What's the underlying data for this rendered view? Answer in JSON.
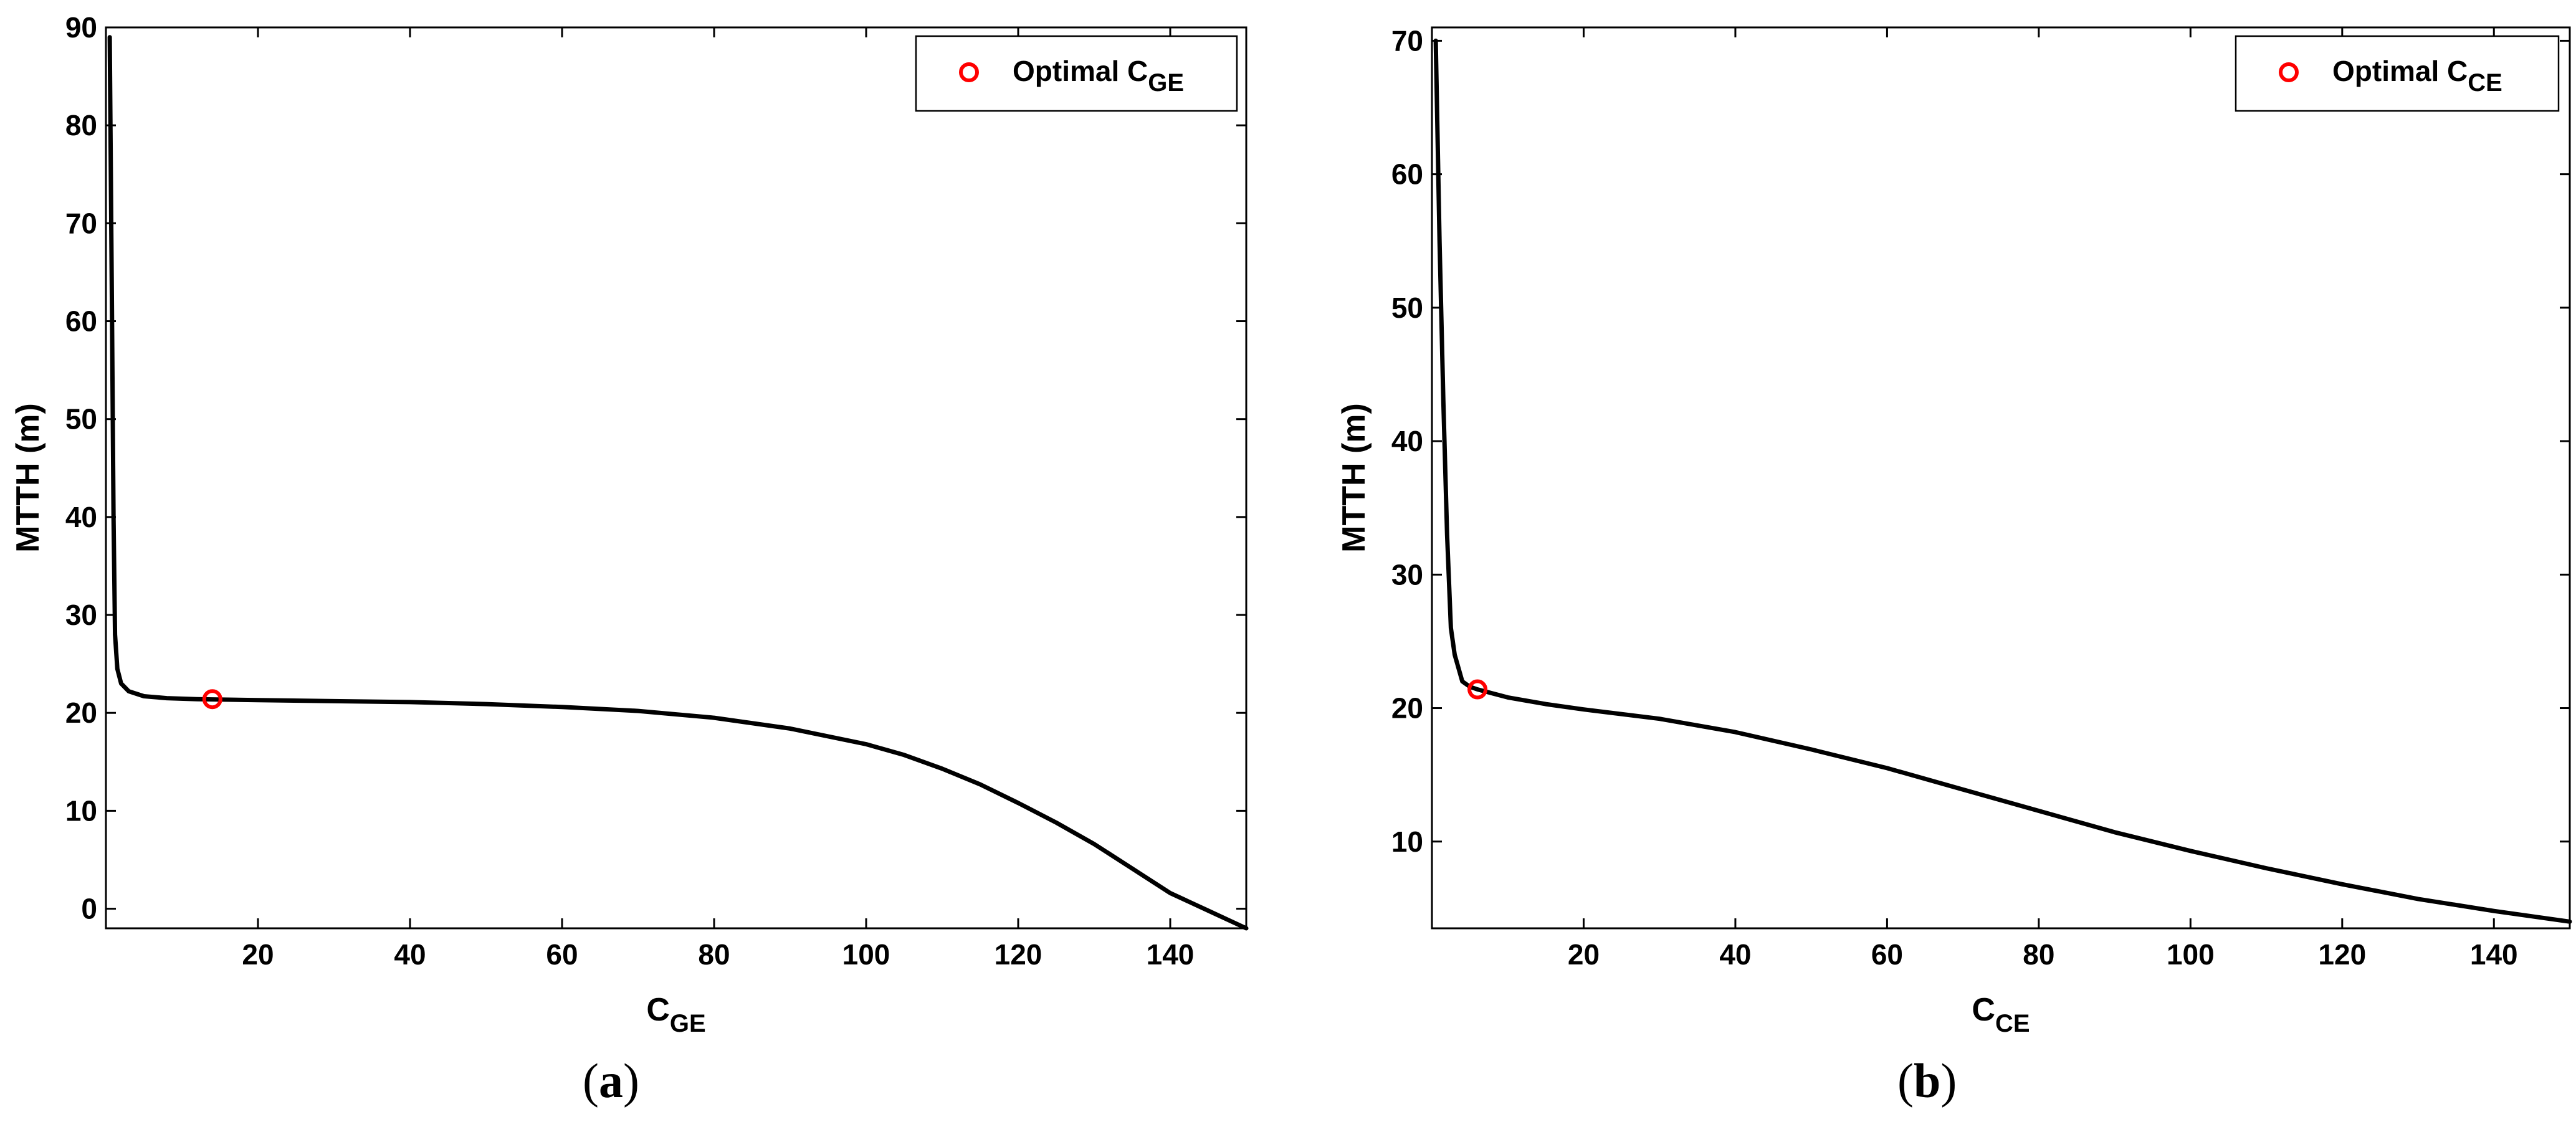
{
  "chart_data": [
    {
      "type": "line",
      "panel_label": "a",
      "xlabel_main": "C",
      "xlabel_sub": "GE",
      "ylabel": "MTTH (m)",
      "xlim": [
        0,
        150
      ],
      "ylim": [
        -2,
        90
      ],
      "xticks": [
        20,
        40,
        60,
        80,
        100,
        120,
        140
      ],
      "yticks": [
        0,
        10,
        20,
        30,
        40,
        50,
        60,
        70,
        80,
        90
      ],
      "grid": false,
      "legend_position": "top-right",
      "series": [
        {
          "color": "#000000",
          "x": [
            0.5,
            0.8,
            1.0,
            1.2,
            1.5,
            2,
            3,
            5,
            8,
            12,
            20,
            30,
            40,
            50,
            60,
            70,
            80,
            90,
            100,
            105,
            110,
            115,
            120,
            125,
            130,
            135,
            140,
            145,
            150
          ],
          "y": [
            89,
            60,
            40,
            28,
            24.5,
            23,
            22.2,
            21.7,
            21.5,
            21.4,
            21.3,
            21.2,
            21.1,
            20.9,
            20.6,
            20.2,
            19.5,
            18.4,
            16.8,
            15.7,
            14.3,
            12.7,
            10.8,
            8.8,
            6.6,
            4.1,
            1.6,
            -0.2,
            -2
          ]
        }
      ],
      "optimal_point": {
        "label_main": "Optimal C",
        "label_sub": "GE",
        "color": "#ff0000",
        "x": 14,
        "y": 21.4
      }
    },
    {
      "type": "line",
      "panel_label": "b",
      "xlabel_main": "C",
      "xlabel_sub": "CE",
      "ylabel": "MTTH (m)",
      "xlim": [
        0,
        150
      ],
      "ylim": [
        3.5,
        71
      ],
      "xticks": [
        20,
        40,
        60,
        80,
        100,
        120,
        140
      ],
      "yticks": [
        10,
        20,
        30,
        40,
        50,
        60,
        70
      ],
      "grid": false,
      "legend_position": "top-right",
      "series": [
        {
          "color": "#000000",
          "x": [
            0.5,
            1.0,
            1.5,
            2.0,
            2.5,
            3,
            4,
            5,
            6,
            8,
            10,
            15,
            20,
            30,
            40,
            50,
            60,
            70,
            80,
            90,
            100,
            110,
            120,
            130,
            140,
            150
          ],
          "y": [
            70,
            55,
            43,
            33,
            26,
            24,
            22,
            21.6,
            21.4,
            21.1,
            20.8,
            20.3,
            19.9,
            19.2,
            18.2,
            16.9,
            15.5,
            13.9,
            12.3,
            10.7,
            9.3,
            8.0,
            6.8,
            5.7,
            4.8,
            4.0
          ]
        }
      ],
      "optimal_point": {
        "label_main": "Optimal C",
        "label_sub": "CE",
        "color": "#ff0000",
        "x": 6,
        "y": 21.4
      }
    }
  ]
}
